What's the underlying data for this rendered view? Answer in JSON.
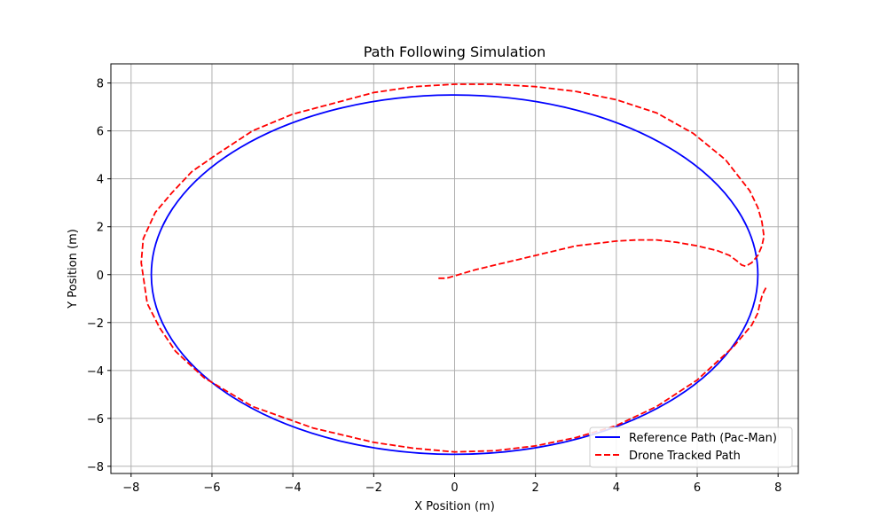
{
  "chart_data": {
    "type": "line",
    "title": "Path Following Simulation",
    "xlabel": "X Position (m)",
    "ylabel": "Y Position (m)",
    "xlim": [
      -8.5,
      8.5
    ],
    "ylim": [
      -8.3,
      8.8
    ],
    "xticks": [
      -8,
      -6,
      -4,
      -2,
      0,
      2,
      4,
      6,
      8
    ],
    "yticks": [
      -8,
      -6,
      -4,
      -2,
      0,
      2,
      4,
      6,
      8
    ],
    "xtick_labels": [
      "−8",
      "−6",
      "−4",
      "−2",
      "0",
      "2",
      "4",
      "6",
      "8"
    ],
    "ytick_labels": [
      "−8",
      "−6",
      "−4",
      "−2",
      "0",
      "2",
      "4",
      "6",
      "8"
    ],
    "grid": true,
    "legend_position": "bottom-right",
    "series": [
      {
        "name": "Reference Path (Pac-Man)",
        "color": "#0000ff",
        "style": "solid",
        "shape": "circle",
        "center": [
          0,
          0
        ],
        "radius": 7.5
      },
      {
        "name": "Drone Tracked Path",
        "color": "#ff0000",
        "style": "dashed",
        "x": [
          -0.4,
          -0.2,
          0.0,
          0.5,
          1.0,
          2.0,
          3.0,
          4.0,
          4.5,
          5.0,
          5.5,
          6.0,
          6.5,
          6.8,
          7.0,
          7.1,
          7.2,
          7.35,
          7.5,
          7.6,
          7.65,
          7.6,
          7.5,
          7.3,
          6.7,
          5.9,
          5.0,
          4.0,
          3.0,
          2.0,
          1.0,
          0.0,
          -1.0,
          -2.0,
          -3.0,
          -4.0,
          -5.0,
          -5.9,
          -6.5,
          -7.0,
          -7.4,
          -7.7,
          -7.75,
          -7.6,
          -7.3,
          -6.9,
          -6.2,
          -5.0,
          -3.5,
          -2.0,
          -1.0,
          0.0,
          1.0,
          2.0,
          3.0,
          4.0,
          5.0,
          6.0,
          6.9,
          7.35,
          7.5,
          7.55,
          7.6,
          7.65,
          7.7
        ],
        "y": [
          -0.15,
          -0.15,
          -0.05,
          0.2,
          0.4,
          0.8,
          1.2,
          1.4,
          1.45,
          1.45,
          1.35,
          1.2,
          1.0,
          0.8,
          0.55,
          0.4,
          0.35,
          0.5,
          0.8,
          1.2,
          1.6,
          2.2,
          2.8,
          3.5,
          4.8,
          5.9,
          6.75,
          7.3,
          7.65,
          7.85,
          7.95,
          7.95,
          7.85,
          7.6,
          7.15,
          6.7,
          6.0,
          5.0,
          4.3,
          3.4,
          2.6,
          1.5,
          0.5,
          -1.2,
          -2.2,
          -3.2,
          -4.3,
          -5.5,
          -6.4,
          -7.0,
          -7.25,
          -7.4,
          -7.35,
          -7.15,
          -6.8,
          -6.3,
          -5.5,
          -4.4,
          -3.0,
          -2.1,
          -1.6,
          -1.2,
          -0.9,
          -0.7,
          -0.55
        ]
      }
    ]
  }
}
